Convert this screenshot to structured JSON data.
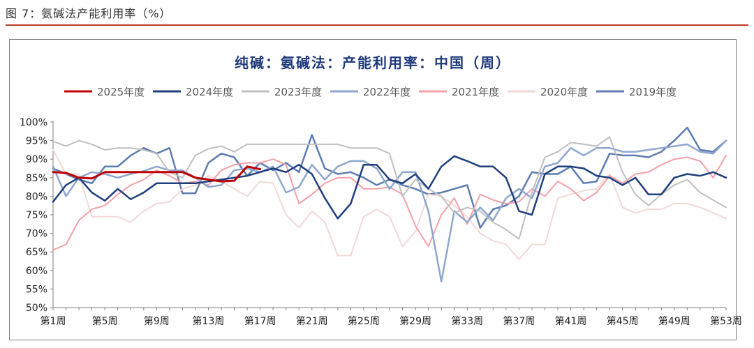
{
  "caption": "图 7：氨碱法产能利用率（%）",
  "chart_data": {
    "type": "line",
    "title": "纯碱：氨碱法：产能利用率：中国（周）",
    "xlabel": "",
    "ylabel": "",
    "ylim": [
      50,
      100
    ],
    "yticks": [
      "50%",
      "55%",
      "60%",
      "65%",
      "70%",
      "75%",
      "80%",
      "85%",
      "90%",
      "95%",
      "100%"
    ],
    "x_tick_labels": [
      "第1周",
      "第5周",
      "第9周",
      "第13周",
      "第17周",
      "第21周",
      "第25周",
      "第29周",
      "第33周",
      "第37周",
      "第41周",
      "第45周",
      "第49周",
      "第53周"
    ],
    "x_ticks_at": [
      1,
      5,
      9,
      13,
      17,
      21,
      25,
      29,
      33,
      37,
      41,
      45,
      49,
      53
    ],
    "xlim": [
      1,
      53
    ],
    "legend_position": "top",
    "grid": false,
    "series": [
      {
        "name": "2025年度",
        "color": "#c00000",
        "width": 3,
        "values": [
          86.5,
          86.3,
          85.0,
          84.8,
          86.5,
          86.5,
          86.5,
          86.5,
          86.5,
          86.5,
          86.5,
          85.0,
          84.5,
          84.0,
          84.2,
          88.0,
          87.3
        ]
      },
      {
        "name": "2024年度",
        "color": "#1f3e7c",
        "width": 2.5,
        "values": [
          78.5,
          83.0,
          85.0,
          81.0,
          78.8,
          82.0,
          79.2,
          81.0,
          83.5,
          83.5,
          83.5,
          83.5,
          84.0,
          84.5,
          85.0,
          85.5,
          86.5,
          87.5,
          86.5,
          88.5,
          86.0,
          79.5,
          74.0,
          78.0,
          88.5,
          88.5,
          84.5,
          83.5,
          86.0,
          82.0,
          88.0,
          90.8,
          89.5,
          88.0,
          88.0,
          85.0,
          76.0,
          75.0,
          86.0,
          88.0,
          88.0,
          87.5,
          85.5,
          85.0,
          83.0,
          85.0,
          80.5,
          80.5,
          85.0,
          86.0,
          85.5,
          86.5,
          85.0
        ]
      },
      {
        "name": "2023年度",
        "color": "#bfbfbf",
        "width": 2,
        "values": [
          94.8,
          93.5,
          95.0,
          94.0,
          92.5,
          93.0,
          93.0,
          92.5,
          91.5,
          86.5,
          85.0,
          91.0,
          92.8,
          93.5,
          92.0,
          94.0,
          94.0,
          94.0,
          94.0,
          94.0,
          94.0,
          94.0,
          94.0,
          93.0,
          93.0,
          93.0,
          91.5,
          80.0,
          84.5,
          82.0,
          80.0,
          75.5,
          77.0,
          76.0,
          73.0,
          71.0,
          68.5,
          81.0,
          90.5,
          92.0,
          94.5,
          94.0,
          93.5,
          96.0,
          86.5,
          80.5,
          77.5,
          80.5,
          83.0,
          84.5,
          81.0,
          79.0,
          77.0
        ]
      },
      {
        "name": "2022年度",
        "color": "#8ea7cf",
        "width": 2.5,
        "values": [
          88.0,
          80.0,
          85.0,
          86.5,
          86.0,
          85.0,
          86.0,
          86.8,
          88.0,
          87.0,
          87.0,
          85.0,
          82.5,
          83.0,
          87.0,
          87.5,
          86.5,
          88.0,
          81.0,
          82.5,
          88.5,
          84.5,
          88.0,
          89.5,
          89.5,
          87.5,
          82.0,
          86.5,
          86.5,
          76.0,
          57.0,
          76.0,
          73.0,
          77.0,
          73.5,
          79.5,
          82.0,
          79.5,
          88.0,
          89.0,
          93.0,
          91.0,
          93.0,
          93.0,
          92.0,
          92.0,
          92.5,
          93.0,
          93.5,
          94.0,
          92.0,
          91.5,
          95.0
        ]
      },
      {
        "name": "2021年度",
        "color": "#f4a0a8",
        "width": 2,
        "values": [
          65.5,
          67.0,
          73.5,
          76.5,
          77.5,
          80.5,
          83.0,
          84.5,
          87.0,
          85.5,
          83.5,
          84.0,
          83.0,
          87.0,
          88.5,
          89.0,
          89.0,
          90.0,
          88.5,
          78.0,
          80.5,
          83.5,
          85.0,
          85.0,
          82.0,
          82.0,
          82.5,
          80.5,
          72.0,
          66.5,
          75.0,
          79.5,
          72.5,
          80.5,
          79.0,
          78.0,
          78.5,
          82.0,
          80.0,
          84.0,
          82.0,
          78.8,
          81.0,
          85.5,
          83.5,
          86.0,
          86.5,
          88.5,
          90.0,
          90.5,
          89.5,
          85.0,
          91.0
        ]
      },
      {
        "name": "2020年度",
        "color": "#f2d7d9",
        "width": 2,
        "values": [
          92.5,
          86.0,
          86.0,
          74.5,
          74.5,
          74.5,
          73.0,
          76.0,
          78.0,
          78.5,
          82.0,
          83.0,
          85.5,
          84.0,
          82.0,
          80.0,
          84.0,
          83.5,
          75.0,
          71.5,
          76.0,
          73.0,
          64.0,
          64.0,
          74.5,
          76.5,
          74.5,
          66.5,
          70.5,
          80.5,
          80.0,
          77.5,
          74.5,
          70.0,
          68.0,
          67.0,
          63.0,
          67.0,
          67.0,
          79.5,
          80.5,
          81.5,
          82.0,
          86.0,
          77.0,
          75.5,
          76.5,
          76.5,
          78.0,
          78.0,
          77.0,
          75.5,
          74.0
        ]
      },
      {
        "name": "2019年度",
        "color": "#5d7cb0",
        "width": 2.5,
        "values": [
          87.5,
          86.0,
          84.5,
          83.5,
          88.0,
          88.0,
          91.0,
          93.0,
          91.5,
          93.0,
          80.8,
          80.8,
          89.0,
          91.5,
          90.5,
          85.5,
          89.0,
          87.0,
          89.0,
          86.5,
          96.5,
          87.5,
          86.0,
          86.5,
          85.0,
          83.0,
          84.5,
          83.0,
          82.0,
          80.5,
          81.0,
          82.0,
          83.0,
          71.5,
          76.5,
          77.5,
          80.0,
          86.5,
          86.0,
          86.0,
          88.0,
          83.5,
          84.0,
          91.5,
          91.0,
          91.0,
          90.5,
          92.0,
          95.0,
          98.5,
          92.5,
          92.0,
          95.0
        ]
      }
    ]
  }
}
